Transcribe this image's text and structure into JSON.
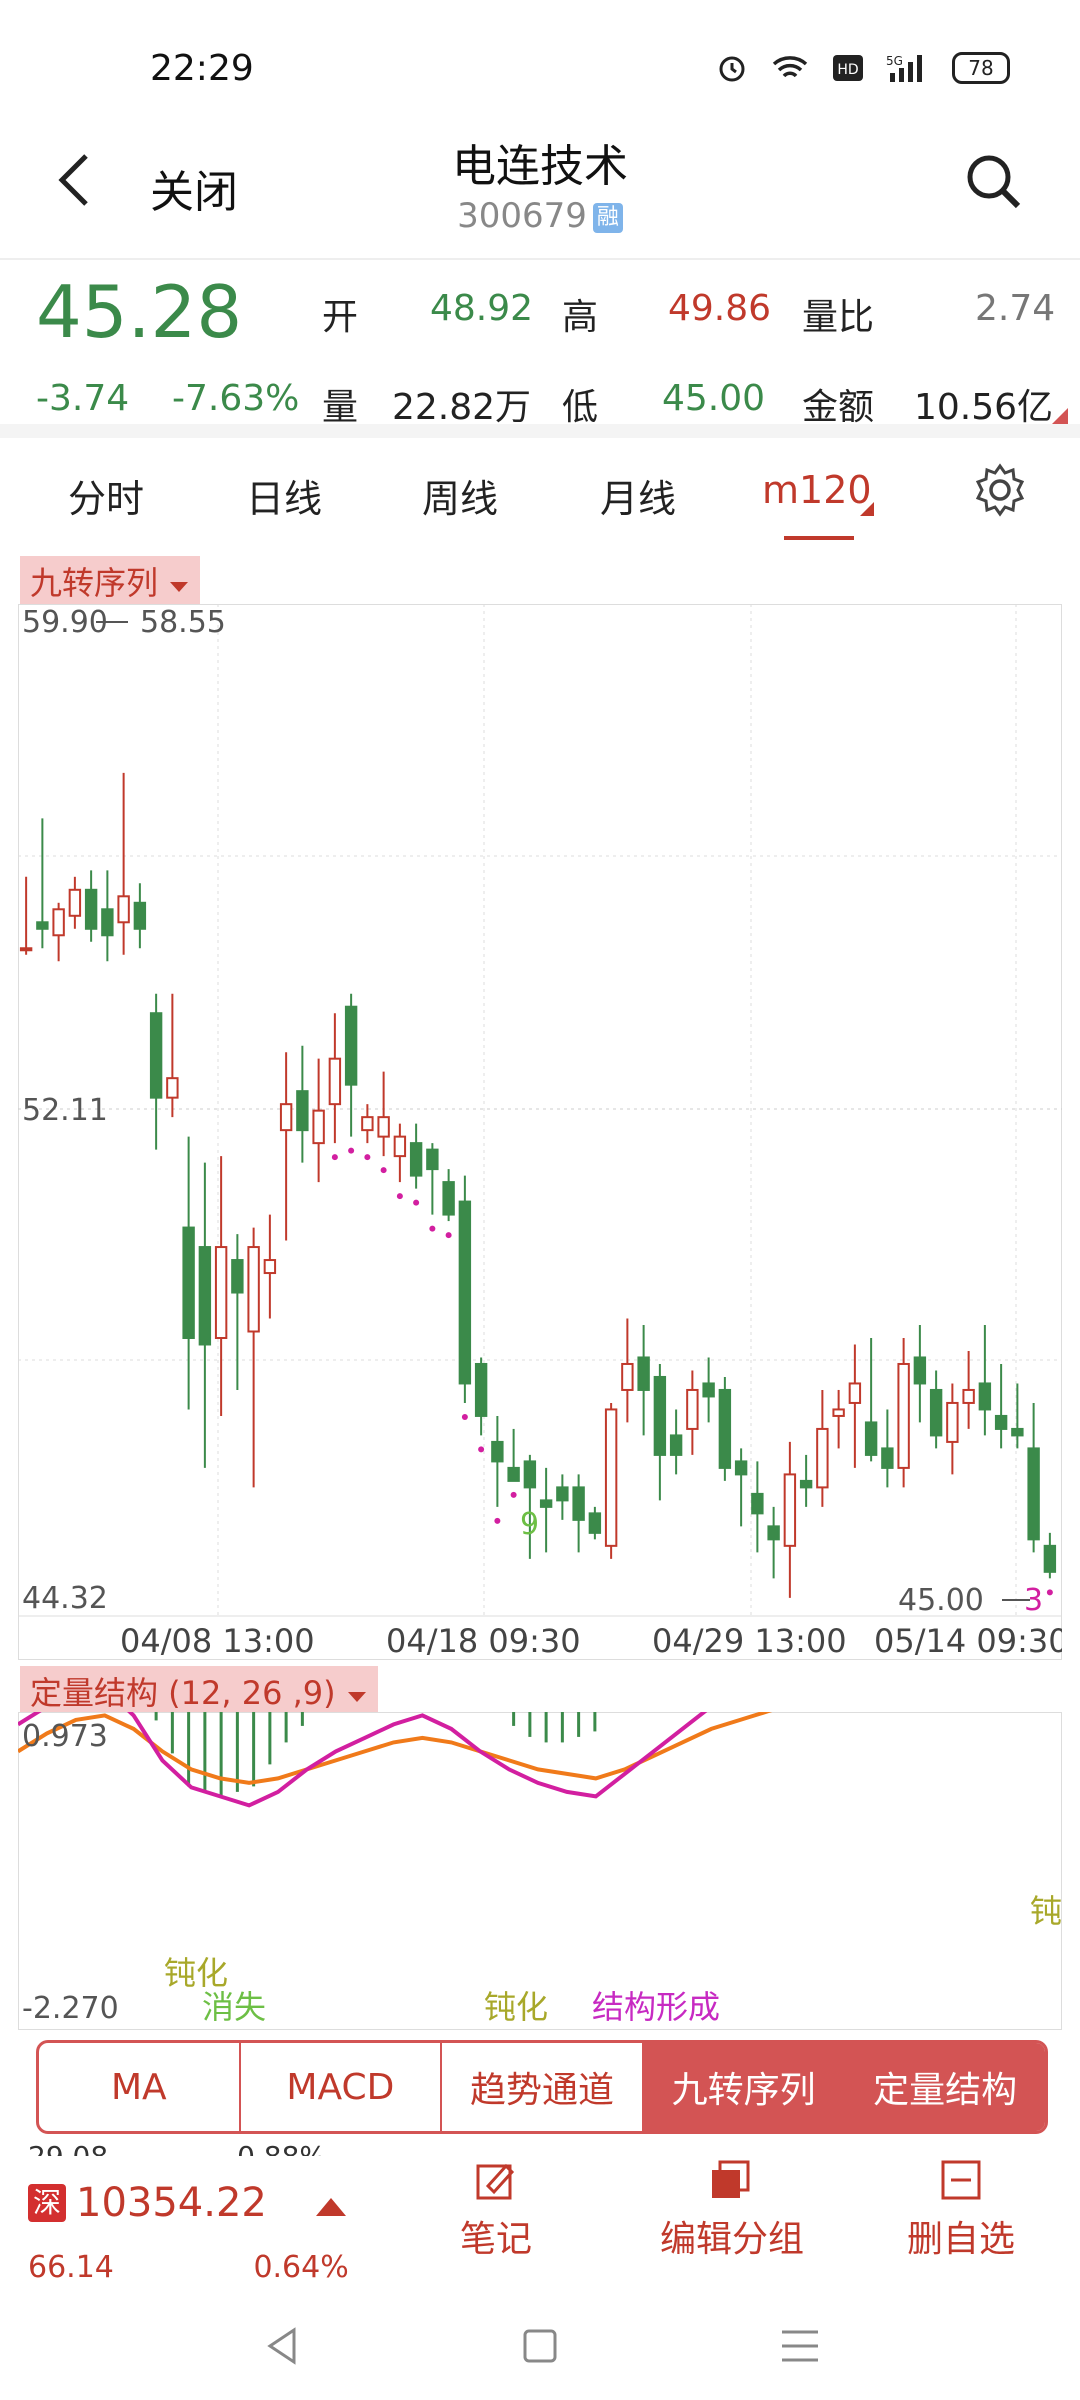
{
  "status_bar": {
    "time": "22:29",
    "battery": "78"
  },
  "header": {
    "back_label": "关闭",
    "title": "电连技术",
    "code": "300679",
    "margin_badge": "融"
  },
  "quote": {
    "price": "45.28",
    "change": "-3.74",
    "change_pct": "-7.63%",
    "open_label": "开",
    "open": "48.92",
    "high_label": "高",
    "high": "49.86",
    "vol_ratio_label": "量比",
    "vol_ratio": "2.74",
    "volume_label": "量",
    "volume": "22.82万",
    "low_label": "低",
    "low": "45.00",
    "amount_label": "金额",
    "amount": "10.56亿"
  },
  "tabs": [
    "分时",
    "日线",
    "周线",
    "月线",
    "m120"
  ],
  "main_chart": {
    "indicator_label": "九转序列",
    "y_top": "59.90",
    "y_mid": "52.11",
    "y_bottom": "44.32",
    "max_label": "58.55",
    "min_label": "45.00",
    "x_labels": [
      "04/08 13:00",
      "04/18 09:30",
      "04/29 13:00",
      "05/14 09:30"
    ],
    "td_nine": "9",
    "td_three": "3"
  },
  "sub_chart": {
    "indicator_label": "定量结构 (12, 26 ,9)",
    "y_top": "0.973",
    "y_bottom": "-2.270",
    "notes": {
      "blunt1": "钝化",
      "vanish": "消失",
      "blunt2": "钝化",
      "formed": "结构形成",
      "blunt3": "钝"
    }
  },
  "indicator_buttons": [
    {
      "label": "MA",
      "active": false
    },
    {
      "label": "MACD",
      "active": false
    },
    {
      "label": "趋势通道",
      "active": false
    },
    {
      "label": "九转序列",
      "active": true
    },
    {
      "label": "定量结构",
      "active": true
    }
  ],
  "bottom_bar": {
    "index_badge": "深",
    "index_value": "10354.22",
    "index_pct": "0.64%",
    "index_cut_top": "29.08",
    "index_cut_pct_top": "0.88%",
    "index_cut_bottom": "66.14",
    "note_label": "笔记",
    "edit_group_label": "编辑分组",
    "delete_label": "删自选"
  },
  "chart_data": {
    "type": "candlestick",
    "ohlc": [
      [
        54.6,
        55.7,
        54.5,
        54.6
      ],
      [
        55.0,
        56.6,
        54.6,
        54.9
      ],
      [
        54.8,
        55.3,
        54.4,
        55.2
      ],
      [
        55.1,
        55.7,
        54.9,
        55.5
      ],
      [
        55.5,
        55.8,
        54.7,
        54.9
      ],
      [
        55.2,
        55.8,
        54.4,
        54.8
      ],
      [
        55.0,
        57.3,
        54.5,
        55.4
      ],
      [
        55.3,
        55.6,
        54.6,
        54.9
      ],
      [
        53.6,
        53.9,
        51.5,
        52.3
      ],
      [
        52.3,
        53.9,
        52.0,
        52.6
      ],
      [
        50.3,
        51.7,
        47.5,
        48.6
      ],
      [
        50.0,
        51.3,
        46.6,
        48.5
      ],
      [
        48.6,
        51.4,
        47.4,
        50.0
      ],
      [
        49.8,
        50.2,
        47.8,
        49.3
      ],
      [
        48.7,
        50.3,
        46.3,
        50.0
      ],
      [
        49.6,
        50.5,
        48.9,
        49.8
      ],
      [
        51.8,
        53.0,
        50.1,
        52.2
      ],
      [
        52.4,
        53.1,
        51.3,
        51.8
      ],
      [
        51.6,
        52.9,
        51.0,
        52.1
      ],
      [
        52.2,
        53.6,
        51.6,
        52.9
      ],
      [
        53.7,
        53.9,
        51.7,
        52.5
      ],
      [
        51.8,
        52.2,
        51.6,
        52.0
      ],
      [
        51.7,
        52.7,
        51.4,
        52.0
      ],
      [
        51.4,
        51.9,
        51.0,
        51.7
      ],
      [
        51.6,
        51.9,
        50.9,
        51.1
      ],
      [
        51.5,
        51.6,
        50.5,
        51.2
      ],
      [
        51.0,
        51.2,
        50.4,
        50.5
      ],
      [
        50.7,
        51.1,
        47.6,
        47.9
      ],
      [
        48.2,
        48.3,
        47.1,
        47.4
      ],
      [
        47.0,
        47.4,
        46.0,
        46.7
      ],
      [
        46.6,
        47.2,
        46.4,
        46.4
      ],
      [
        46.7,
        46.8,
        45.2,
        46.3
      ],
      [
        46.1,
        46.6,
        45.3,
        46.0
      ],
      [
        46.3,
        46.5,
        45.8,
        46.1
      ],
      [
        46.3,
        46.5,
        45.3,
        45.8
      ],
      [
        45.9,
        46.0,
        45.5,
        45.6
      ],
      [
        45.4,
        47.6,
        45.2,
        47.5
      ],
      [
        47.8,
        48.9,
        47.3,
        48.2
      ],
      [
        48.3,
        48.8,
        47.1,
        47.8
      ],
      [
        48.0,
        48.2,
        46.1,
        46.8
      ],
      [
        47.1,
        47.5,
        46.5,
        46.8
      ],
      [
        47.2,
        48.1,
        46.8,
        47.8
      ],
      [
        47.9,
        48.3,
        47.3,
        47.7
      ],
      [
        47.8,
        48.0,
        46.4,
        46.6
      ],
      [
        46.7,
        46.9,
        45.7,
        46.5
      ],
      [
        46.2,
        46.7,
        45.3,
        45.9
      ],
      [
        45.7,
        46.0,
        44.9,
        45.5
      ],
      [
        45.4,
        47.0,
        44.6,
        46.5
      ],
      [
        46.4,
        46.8,
        46.0,
        46.3
      ],
      [
        46.3,
        47.8,
        46.0,
        47.2
      ],
      [
        47.4,
        47.8,
        46.9,
        47.5
      ],
      [
        47.6,
        48.5,
        46.6,
        47.9
      ],
      [
        47.3,
        48.6,
        46.7,
        46.8
      ],
      [
        46.9,
        47.5,
        46.3,
        46.6
      ],
      [
        46.6,
        48.6,
        46.3,
        48.2
      ],
      [
        48.3,
        48.8,
        47.3,
        47.9
      ],
      [
        47.8,
        48.1,
        46.9,
        47.1
      ],
      [
        47.0,
        47.9,
        46.5,
        47.6
      ],
      [
        47.6,
        48.4,
        47.2,
        47.8
      ],
      [
        47.9,
        48.8,
        47.1,
        47.5
      ],
      [
        47.4,
        48.2,
        46.9,
        47.2
      ],
      [
        47.2,
        47.9,
        46.9,
        47.1
      ],
      [
        46.9,
        47.6,
        45.3,
        45.5
      ],
      [
        45.4,
        45.6,
        44.9,
        45.0
      ]
    ],
    "td_seq_markers": "magenta dots under down-sequence candles; 9 and 3 labels",
    "ylim": [
      44.32,
      59.9
    ],
    "sub_series": [
      {
        "name": "DIF",
        "color": "#d21fa0"
      },
      {
        "name": "DEA",
        "color": "#f07a1a"
      }
    ],
    "macd_bars": [
      0.6,
      0.6,
      0.55,
      0.5,
      0.5,
      0.45,
      0.3,
      0.1,
      -0.3,
      -0.6,
      -0.9,
      -0.95,
      -1.0,
      -0.95,
      -0.9,
      -0.7,
      -0.5,
      -0.35,
      -0.15,
      0.1,
      0.25,
      0.35,
      0.4,
      0.4,
      0.38,
      0.34,
      0.3,
      0.2,
      0.05,
      -0.2,
      -0.35,
      -0.45,
      -0.5,
      -0.5,
      -0.45,
      -0.4,
      -0.2,
      0.05,
      0.35,
      0.5,
      0.6,
      0.65,
      0.72,
      0.75,
      0.6,
      0.5,
      0.35,
      0.2,
      0.15,
      0.2,
      0.35,
      0.45,
      0.5,
      0.5,
      0.55,
      0.6,
      0.6,
      0.55,
      0.5,
      0.45,
      0.4,
      0.3,
      0.15,
      0.0
    ],
    "ylim_sub": [
      -2.27,
      0.973
    ]
  }
}
